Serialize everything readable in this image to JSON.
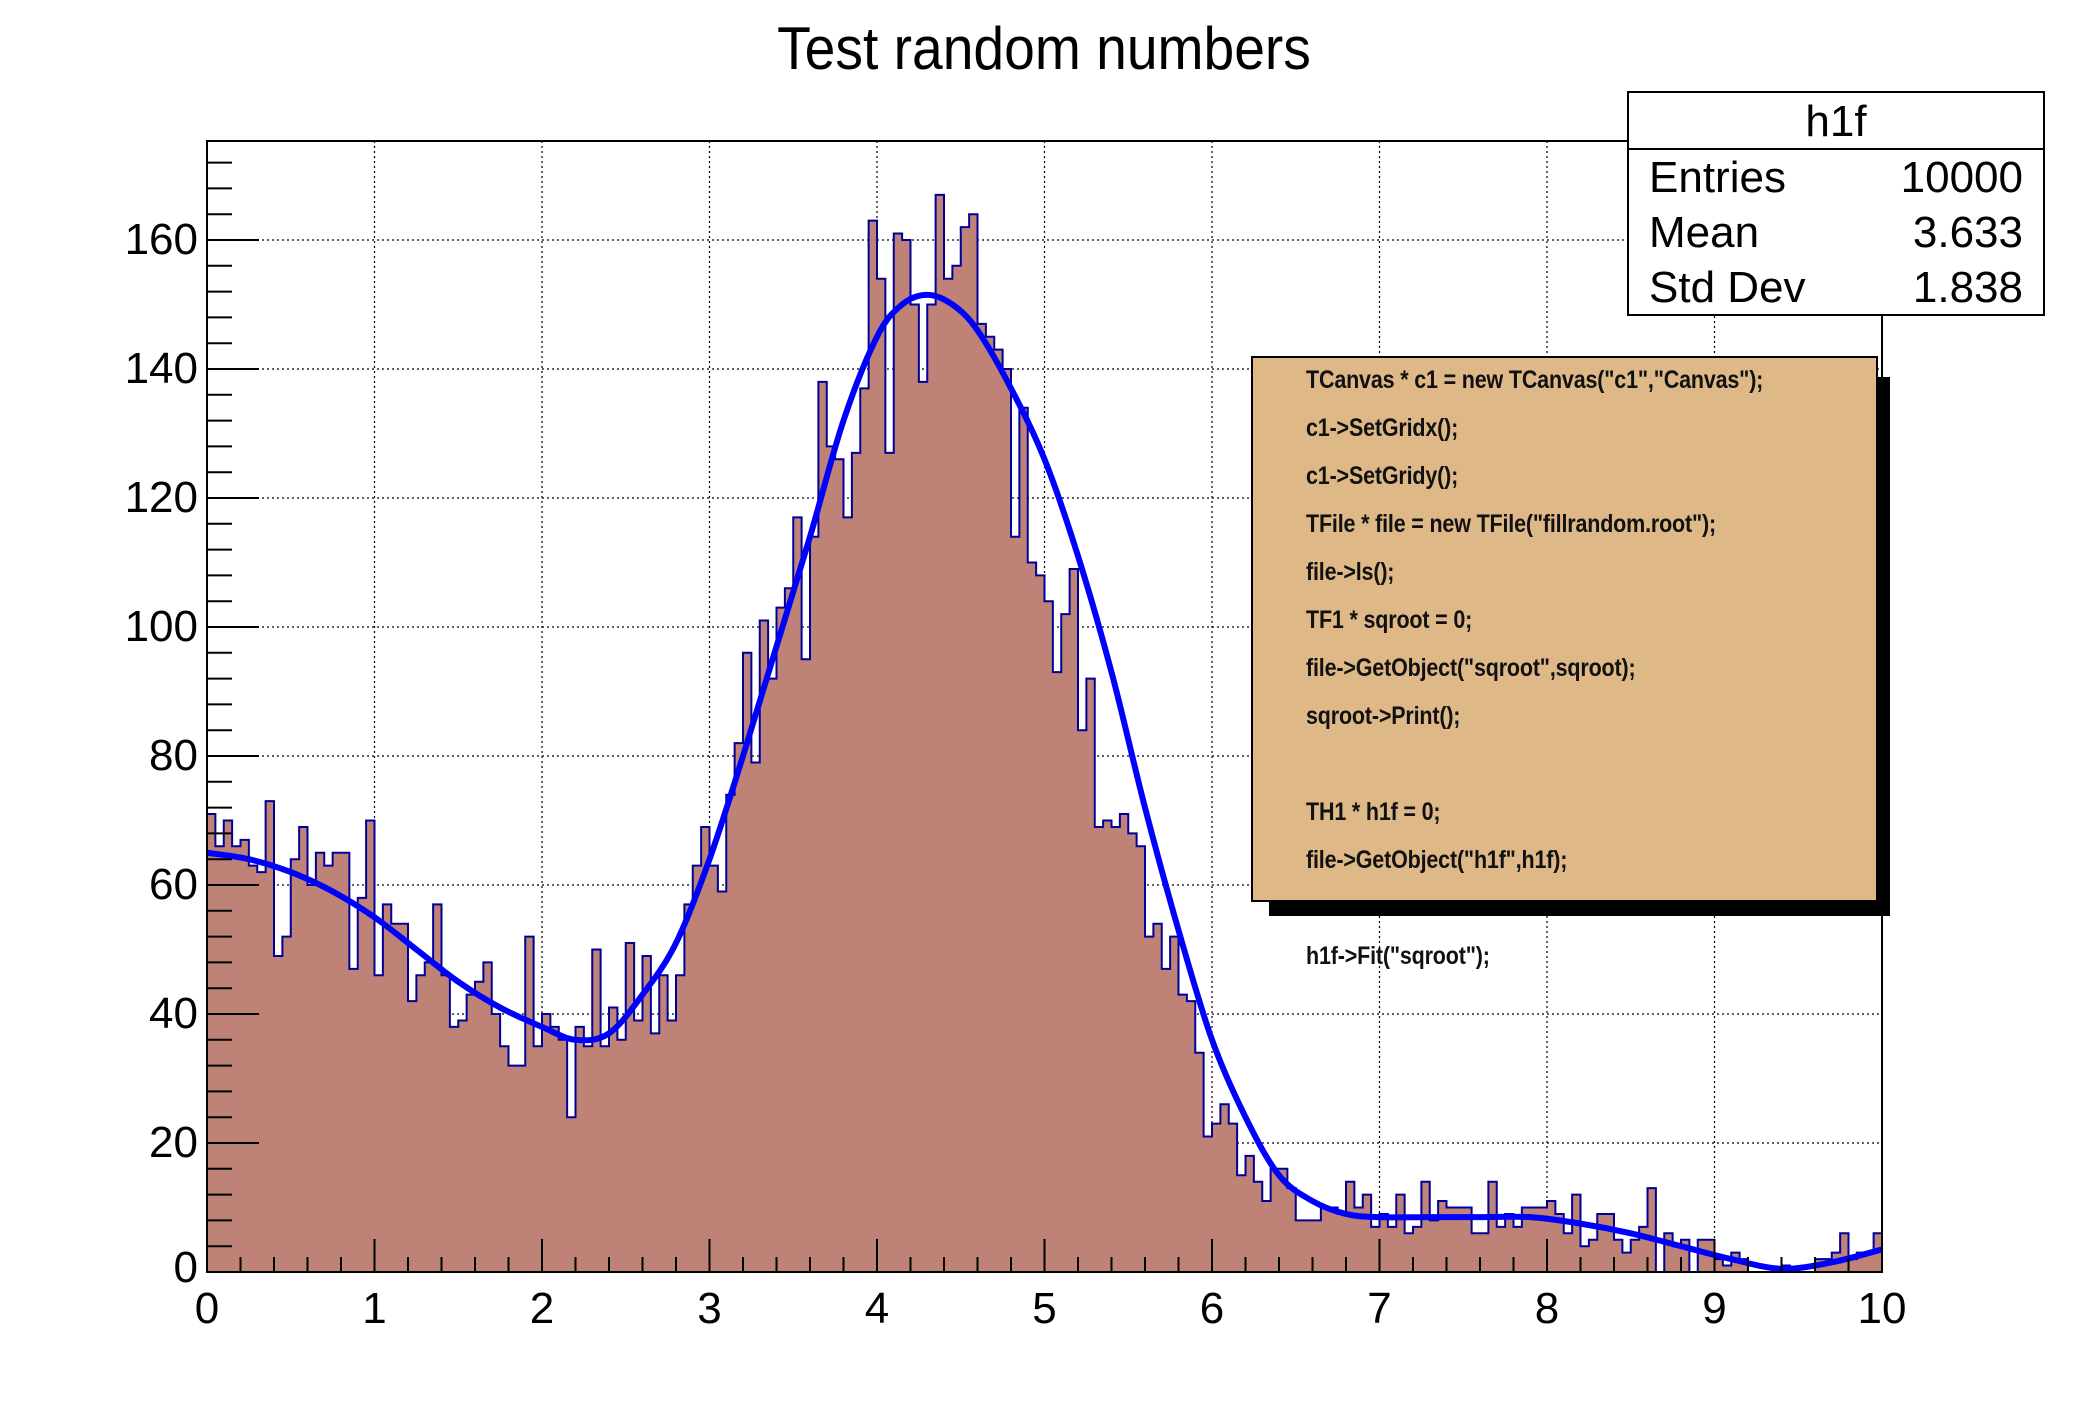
{
  "title": "Test random numbers",
  "stats": {
    "name": "h1f",
    "rows": [
      {
        "label": "Entries",
        "value": "10000"
      },
      {
        "label": "Mean",
        "value": "3.633"
      },
      {
        "label": "Std Dev",
        "value": "1.838"
      }
    ]
  },
  "code_box": {
    "lines": [
      "TCanvas * c1 = new TCanvas(\"c1\",\"Canvas\");",
      "c1->SetGridx();",
      "c1->SetGridy();",
      "TFile * file = new TFile(\"fillrandom.root\");",
      "file->ls();",
      "TF1 * sqroot = 0;",
      "file->GetObject(\"sqroot\",sqroot);",
      "sqroot->Print();",
      "",
      "TH1 * h1f = 0;",
      "file->GetObject(\"h1f\",h1f);",
      "",
      "h1f->Fit(\"sqroot\");"
    ]
  },
  "colors": {
    "fill": "#bf8277",
    "hist_line": "#000099",
    "fit_line": "#0000ff",
    "code_bg": "#deb887",
    "grid": "#000000"
  },
  "chart_data": {
    "type": "bar",
    "title": "Test random numbers",
    "xlabel": "",
    "ylabel": "",
    "xlim": [
      0,
      10
    ],
    "ylim": [
      0,
      175
    ],
    "grid": true,
    "x_ticks": [
      "0",
      "1",
      "2",
      "3",
      "4",
      "5",
      "6",
      "7",
      "8",
      "9",
      "10"
    ],
    "y_ticks": [
      "0",
      "20",
      "40",
      "60",
      "80",
      "100",
      "120",
      "140",
      "160"
    ],
    "bin_width": 0.05,
    "n_bins": 200,
    "series": [
      {
        "name": "h1f",
        "type": "histogram",
        "values": [
          71,
          66,
          70,
          66,
          67,
          63,
          62,
          73,
          49,
          52,
          64,
          69,
          60,
          65,
          63,
          65,
          65,
          47,
          58,
          70,
          46,
          57,
          54,
          54,
          42,
          46,
          48,
          57,
          46,
          38,
          39,
          43,
          45,
          48,
          40,
          35,
          32,
          32,
          52,
          35,
          40,
          38,
          36,
          24,
          38,
          35,
          50,
          35,
          41,
          36,
          51,
          39,
          49,
          37,
          46,
          39,
          46,
          57,
          63,
          69,
          63,
          59,
          74,
          82,
          96,
          79,
          101,
          92,
          103,
          106,
          117,
          95,
          114,
          138,
          128,
          126,
          117,
          127,
          137,
          163,
          154,
          127,
          161,
          160,
          150,
          138,
          150,
          167,
          154,
          156,
          162,
          164,
          147,
          145,
          143,
          140,
          114,
          134,
          110,
          108,
          104,
          93,
          102,
          109,
          84,
          92,
          69,
          70,
          69,
          71,
          68,
          66,
          52,
          54,
          47,
          52,
          43,
          42,
          34,
          21,
          23,
          26,
          23,
          15,
          18,
          14,
          11,
          16,
          16,
          13,
          8,
          8,
          8,
          10,
          10,
          9,
          14,
          10,
          12,
          7,
          9,
          7,
          12,
          6,
          7,
          14,
          8,
          11,
          10,
          10,
          10,
          6,
          6,
          14,
          7,
          9,
          7,
          10,
          10,
          10,
          11,
          9,
          6,
          12,
          4,
          5,
          9,
          9,
          5,
          3,
          5,
          7,
          13,
          0,
          6,
          4,
          5,
          0,
          5,
          5,
          2,
          1,
          3,
          2,
          0,
          0,
          0,
          0,
          1,
          0,
          0,
          0,
          2,
          2,
          3,
          6,
          2,
          3,
          3,
          6
        ]
      },
      {
        "name": "sqroot fit",
        "type": "line",
        "x": [
          0.0,
          0.25,
          0.5,
          0.75,
          1.0,
          1.25,
          1.5,
          1.75,
          2.0,
          2.2,
          2.4,
          2.6,
          2.8,
          3.0,
          3.2,
          3.4,
          3.6,
          3.8,
          4.0,
          4.15,
          4.3,
          4.45,
          4.6,
          4.8,
          5.0,
          5.2,
          5.4,
          5.6,
          5.8,
          6.0,
          6.2,
          6.4,
          6.6,
          6.8,
          7.0,
          7.3,
          7.6,
          7.9,
          8.2,
          8.5,
          8.8,
          9.1,
          9.4,
          9.7,
          10.0
        ],
        "y": [
          65,
          64,
          62,
          59,
          55,
          50,
          45,
          41,
          38,
          36,
          37,
          43,
          51,
          64,
          80,
          97,
          114,
          132,
          145,
          150,
          151.5,
          150,
          146,
          137,
          126,
          111,
          93,
          72,
          53,
          36,
          24,
          15,
          11,
          9,
          8.5,
          8.5,
          8.5,
          8.5,
          7.5,
          6,
          4,
          2,
          0.5,
          1.5,
          3.5
        ]
      }
    ],
    "stats_box": {
      "name": "h1f",
      "Entries": 10000,
      "Mean": 3.633,
      "Std Dev": 1.838
    }
  }
}
